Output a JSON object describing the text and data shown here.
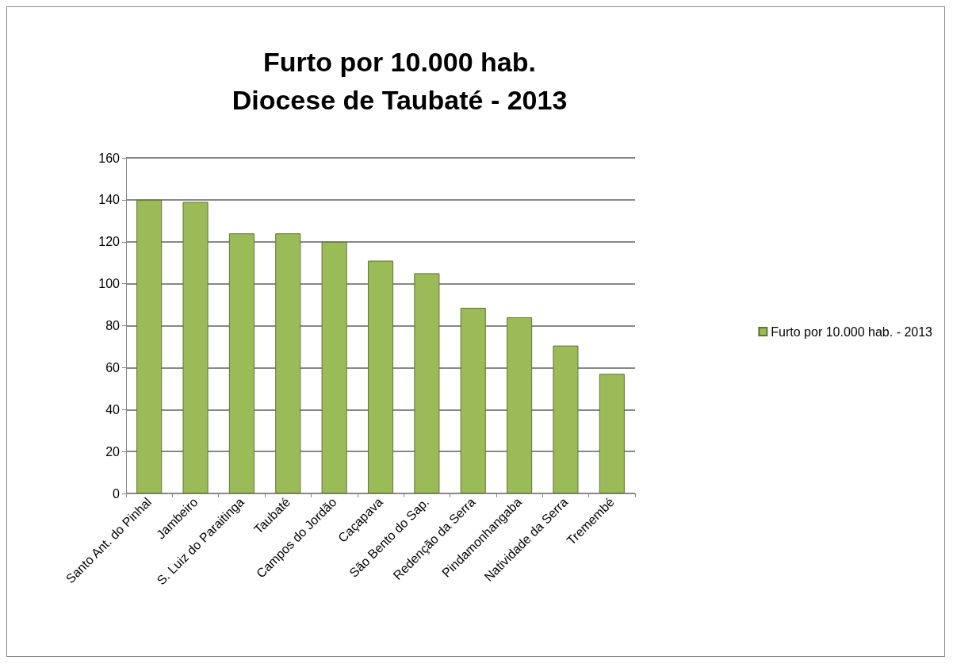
{
  "chart_data": {
    "type": "bar",
    "title": "Furto por 10.000 hab.\nDiocese de Taubaté - 2013",
    "categories": [
      "Santo Ant. do Pinhal",
      "Jambeiro",
      "S. Luiz do Paraitinga",
      "Taubaté",
      "Campos do Jordão",
      "Caçapava",
      "São Bento do Sap.",
      "Redenção da Serra",
      "Pindamonhangaba",
      "Natividade da Serra",
      "Tremembé"
    ],
    "series": [
      {
        "name": "Furto por 10.000 hab. - 2013",
        "color": "#9bbb59",
        "values": [
          140,
          139,
          124,
          124,
          120,
          111,
          105,
          88.5,
          84,
          70.5,
          57
        ]
      }
    ],
    "ylim": [
      0,
      160
    ],
    "yticks": [
      0,
      20,
      40,
      60,
      80,
      100,
      120,
      140,
      160
    ],
    "grid": "y",
    "legend": "right"
  }
}
